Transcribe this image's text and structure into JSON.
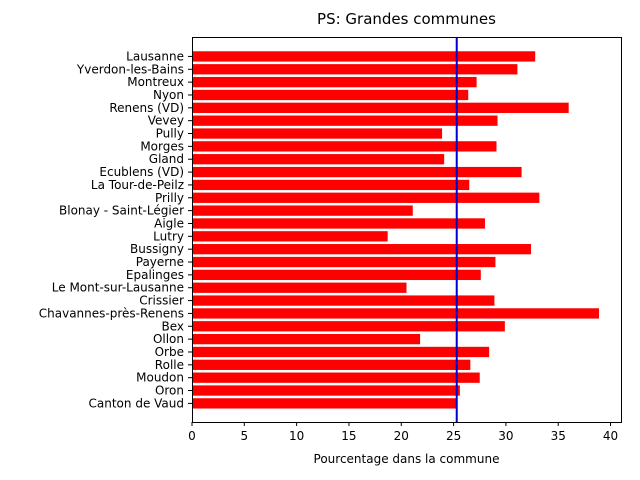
{
  "chart_data": {
    "type": "bar",
    "orientation": "horizontal",
    "title": "PS: Grandes communes",
    "xlabel": "Pourcentage dans la commune",
    "ylabel": "",
    "xlim": [
      0,
      41
    ],
    "xticks": [
      0,
      5,
      10,
      15,
      20,
      25,
      30,
      35,
      40
    ],
    "bar_color": "#ff0000",
    "reference_line": {
      "value": 25.3,
      "color": "#0000cc"
    },
    "categories": [
      "Lausanne",
      "Yverdon-les-Bains",
      "Montreux",
      "Nyon",
      "Renens (VD)",
      "Vevey",
      "Pully",
      "Morges",
      "Gland",
      "Ecublens (VD)",
      "La Tour-de-Peilz",
      "Prilly",
      "Blonay - Saint-Légier",
      "Aigle",
      "Lutry",
      "Bussigny",
      "Payerne",
      "Epalinges",
      "Le Mont-sur-Lausanne",
      "Crissier",
      "Chavannes-près-Renens",
      "Bex",
      "Ollon",
      "Orbe",
      "Rolle",
      "Moudon",
      "Oron",
      "Canton de Vaud"
    ],
    "values": [
      32.8,
      31.1,
      27.2,
      26.4,
      36.0,
      29.2,
      23.9,
      29.1,
      24.1,
      31.5,
      26.5,
      33.2,
      21.1,
      28.0,
      18.7,
      32.4,
      29.0,
      27.6,
      20.5,
      28.9,
      38.9,
      29.9,
      21.8,
      28.4,
      26.6,
      27.5,
      25.6,
      25.3
    ],
    "grid": false,
    "legend": "none"
  }
}
